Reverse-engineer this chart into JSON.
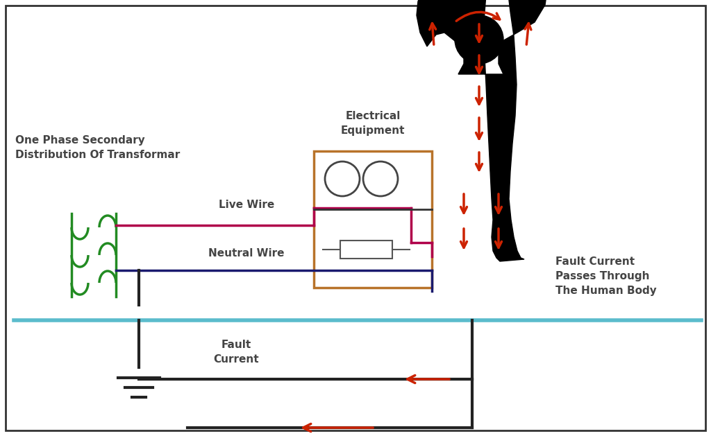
{
  "bg_color": "#ffffff",
  "border_color": "#333333",
  "live_wire_color": "#b0004a",
  "neutral_wire_color": "#1a1a6e",
  "ground_wire_color": "#222222",
  "transformer_color": "#228B22",
  "equipment_box_color": "#b8732a",
  "fault_arrow_color": "#cc2200",
  "floor_color": "#5bbccc",
  "text_color": "#444444",
  "title_label": "One Phase Secondary\nDistribution Of Transformar",
  "live_wire_label": "Live Wire",
  "neutral_wire_label": "Neutral Wire",
  "fault_current_label": "Fault\nCurrent",
  "fault_body_label": "Fault Current\nPasses Through\nThe Human Body",
  "equipment_label": "Electrical\nEquipment",
  "figsize": [
    10.24,
    6.29
  ],
  "dpi": 100
}
